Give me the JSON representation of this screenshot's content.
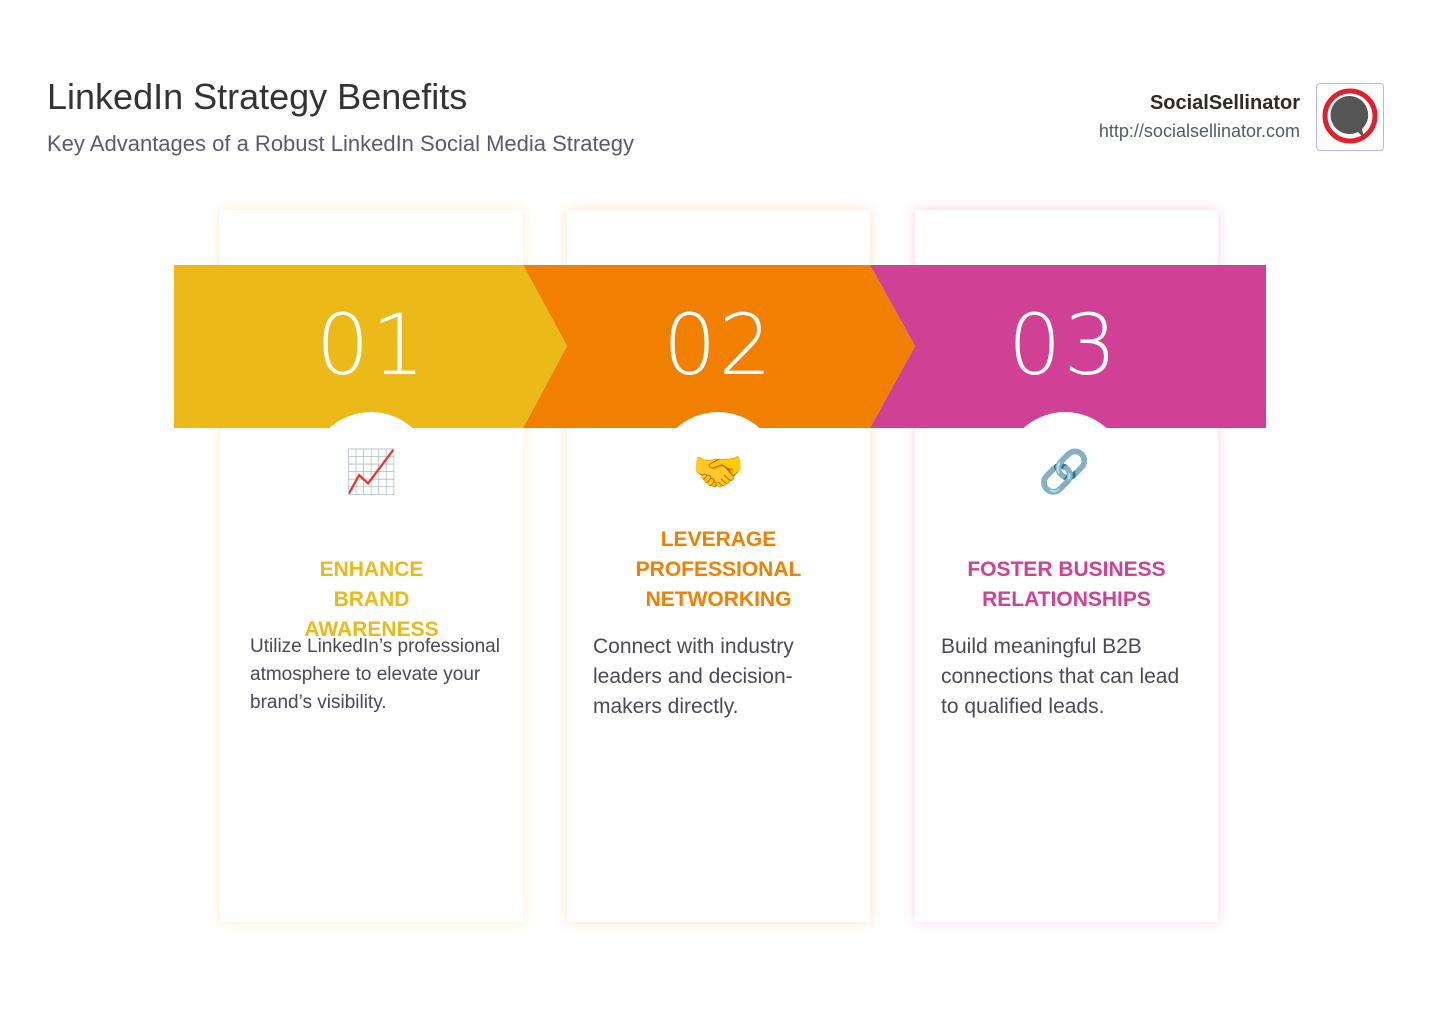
{
  "header": {
    "title": "LinkedIn Strategy Benefits",
    "subtitle": "Key Advantages of a Robust LinkedIn Social Media Strategy"
  },
  "brand": {
    "name": "SocialSellinator",
    "url": "http://socialsellinator.com",
    "logo_icon": "speech-bubble-logo"
  },
  "colors": {
    "step1": "#ECBA18",
    "step2": "#F28000",
    "step3": "#D04094"
  },
  "steps": [
    {
      "number": "01",
      "icon": "chart-increasing-icon",
      "emoji": "📈",
      "heading": "ENHANCE BRAND AWARENESS",
      "body": "Utilize LinkedIn’s professional atmosphere to elevate your brand’s visibility."
    },
    {
      "number": "02",
      "icon": "handshake-icon",
      "emoji": "🤝",
      "heading": "LEVERAGE PROFESSIONAL NETWORKING",
      "body": "Connect with industry leaders and decision-makers directly."
    },
    {
      "number": "03",
      "icon": "link-icon",
      "emoji": "🔗",
      "heading": "FOSTER BUSINESS RELATIONSHIPS",
      "body": "Build meaningful B2B connections that can lead to qualified leads."
    }
  ]
}
